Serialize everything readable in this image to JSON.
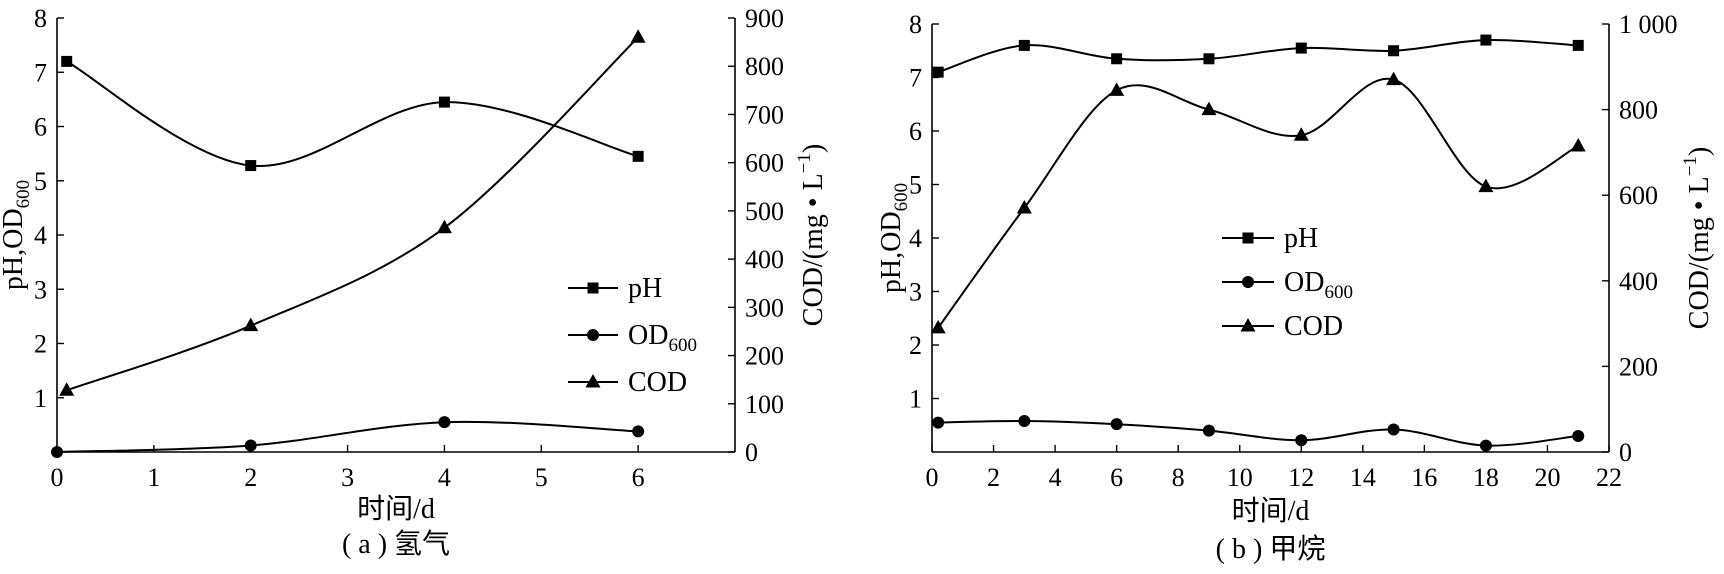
{
  "chart_data": [
    {
      "id": "a",
      "type": "line",
      "caption": "( a ) 氢气",
      "xlabel": "时间/d",
      "ylabel": "pH,OD",
      "ylabel_sub": "600",
      "y2label": "COD/(mg • L",
      "y2label_sup": "−1",
      "y2label_end": ")",
      "xlim": [
        0,
        7
      ],
      "ylim": [
        0,
        8
      ],
      "y2lim": [
        0,
        900
      ],
      "xticks": [
        0,
        1,
        2,
        3,
        4,
        5,
        6
      ],
      "xtick_labels": [
        "0",
        "1",
        "2",
        "3",
        "4",
        "5",
        "6"
      ],
      "yticks": [
        1,
        2,
        3,
        4,
        5,
        6,
        7,
        8
      ],
      "ytick_labels": [
        "1",
        "2",
        "3",
        "4",
        "5",
        "6",
        "7",
        "8"
      ],
      "y2ticks": [
        0,
        100,
        200,
        300,
        400,
        500,
        600,
        700,
        800,
        900
      ],
      "y2tick_labels": [
        "0",
        "100",
        "200",
        "300",
        "400",
        "500",
        "600",
        "700",
        "800",
        "900"
      ],
      "legend_position": "center-right",
      "series": [
        {
          "name": "pH",
          "marker": "square",
          "axis": "left",
          "x": [
            0.1,
            2,
            4,
            6
          ],
          "y": [
            7.2,
            5.28,
            6.45,
            5.45
          ]
        },
        {
          "name": "OD",
          "name_sub": "600",
          "marker": "circle",
          "axis": "left",
          "x": [
            0,
            2,
            4,
            6
          ],
          "y": [
            0.0,
            0.12,
            0.55,
            0.38
          ]
        },
        {
          "name": "COD",
          "marker": "triangle",
          "axis": "right",
          "x": [
            0.1,
            2,
            4,
            6
          ],
          "y": [
            128,
            262,
            465,
            860
          ]
        }
      ]
    },
    {
      "id": "b",
      "type": "line",
      "caption": "( b ) 甲烷",
      "xlabel": "时间/d",
      "ylabel": "pH,OD",
      "ylabel_sub": "600",
      "y2label": "COD/(mg • L",
      "y2label_sup": "−1",
      "y2label_end": ")",
      "xlim": [
        0,
        22
      ],
      "ylim": [
        0,
        8
      ],
      "y2lim": [
        0,
        1000
      ],
      "xticks": [
        0,
        2,
        4,
        6,
        8,
        10,
        12,
        14,
        16,
        18,
        20,
        22
      ],
      "xtick_labels": [
        "0",
        "2",
        "4",
        "6",
        "8",
        "10",
        "12",
        "14",
        "16",
        "18",
        "20",
        "22"
      ],
      "yticks": [
        1,
        2,
        3,
        4,
        5,
        6,
        7,
        8
      ],
      "ytick_labels": [
        "1",
        "2",
        "3",
        "4",
        "5",
        "6",
        "7",
        "8"
      ],
      "y2ticks": [
        0,
        200,
        400,
        600,
        800,
        1000
      ],
      "y2tick_labels": [
        "0",
        "200",
        "400",
        "600",
        "800",
        "1 000"
      ],
      "legend_position": "center",
      "series": [
        {
          "name": "pH",
          "marker": "square",
          "axis": "left",
          "x": [
            0.2,
            3,
            6,
            9,
            12,
            15,
            18,
            21
          ],
          "y": [
            7.1,
            7.6,
            7.35,
            7.35,
            7.55,
            7.5,
            7.7,
            7.6
          ]
        },
        {
          "name": "OD",
          "name_sub": "600",
          "marker": "circle",
          "axis": "left",
          "x": [
            0.2,
            3,
            6,
            9,
            12,
            15,
            18,
            21
          ],
          "y": [
            0.55,
            0.58,
            0.52,
            0.4,
            0.22,
            0.42,
            0.12,
            0.3
          ]
        },
        {
          "name": "COD",
          "marker": "triangle",
          "axis": "right",
          "x": [
            0.2,
            3,
            6,
            9,
            12,
            15,
            18,
            21
          ],
          "y": [
            290,
            570,
            845,
            800,
            740,
            870,
            620,
            715
          ]
        }
      ]
    }
  ]
}
